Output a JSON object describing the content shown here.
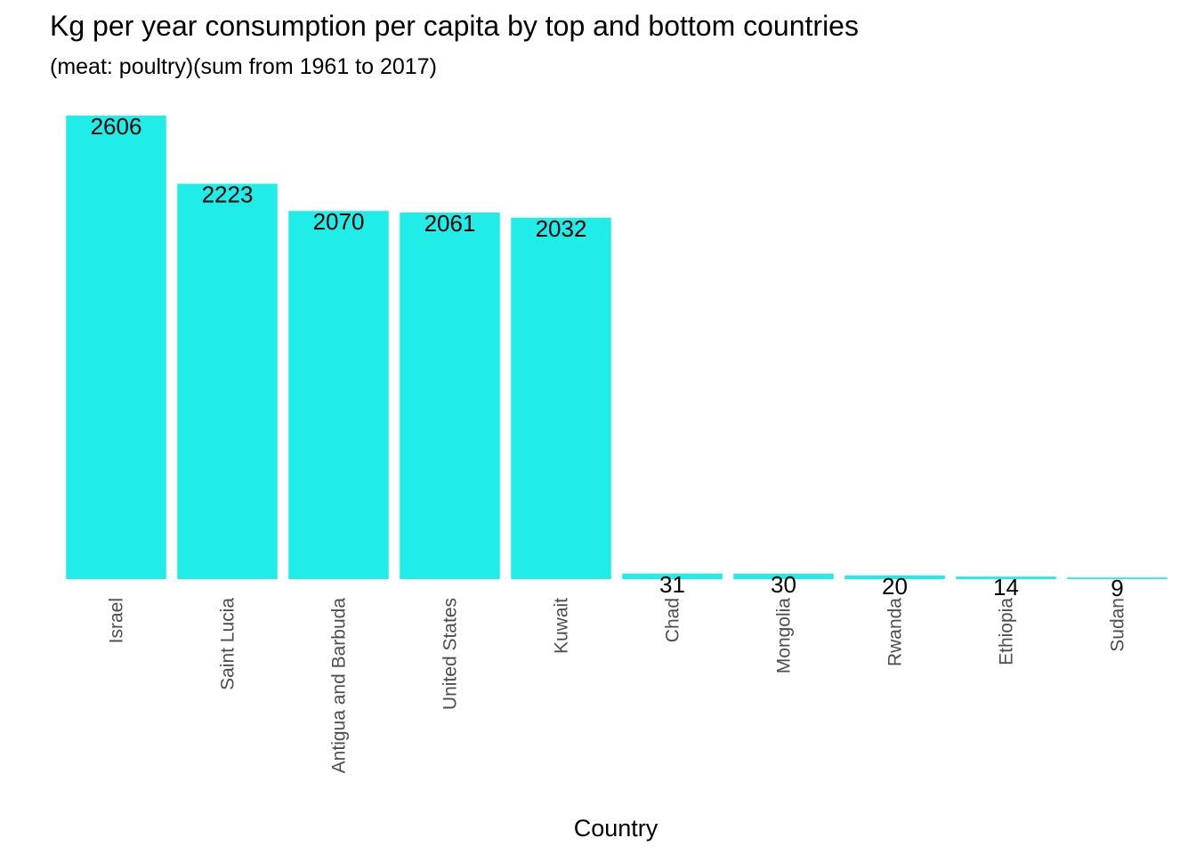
{
  "chart_data": {
    "type": "bar",
    "title": "Kg per year consumption per capita by top and bottom countries",
    "subtitle": "(meat: poultry)(sum from 1961 to 2017)",
    "xlabel": "Country",
    "ylabel": "",
    "categories": [
      "Israel",
      "Saint Lucia",
      "Antigua and Barbuda",
      "United States",
      "Kuwait",
      "Chad",
      "Mongolia",
      "Rwanda",
      "Ethiopia",
      "Sudan"
    ],
    "values": [
      2606,
      2223,
      2070,
      2061,
      2032,
      31,
      30,
      20,
      14,
      9
    ],
    "ylim": [
      0,
      2606
    ],
    "grid": false,
    "bar_color": "#20EDE8"
  }
}
